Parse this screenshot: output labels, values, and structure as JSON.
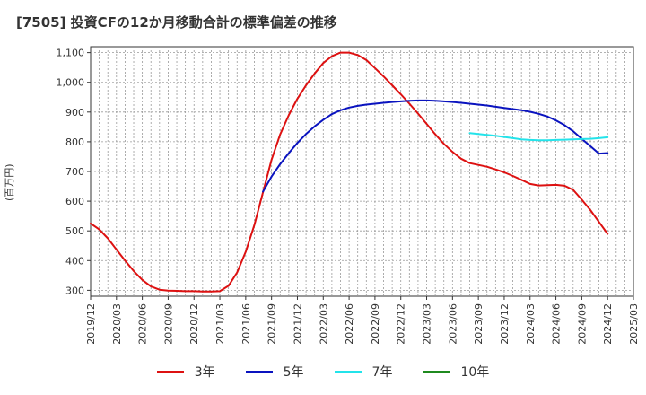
{
  "title": "[7505]  投資CFの12か月移動合計の標準偏差の推移",
  "colors": {
    "s3": "#dd1111",
    "s5": "#0a13bf",
    "s7": "#23e3ea",
    "s10": "#1f8a1f",
    "grid": "#999999",
    "axis": "#333333"
  },
  "chart_data": {
    "type": "line",
    "title": "[7505]  投資CFの12か月移動合計の標準偏差の推移",
    "ylabel": "(百万円)",
    "xlabel": "",
    "ylim": [
      280,
      1120
    ],
    "yticks": [
      300,
      400,
      500,
      600,
      700,
      800,
      900,
      1000,
      1100
    ],
    "ytick_labels": [
      "300",
      "400",
      "500",
      "600",
      "700",
      "800",
      "900",
      "1,000",
      "1,100"
    ],
    "xticks": [
      "2019/12",
      "2020/03",
      "2020/06",
      "2020/09",
      "2020/12",
      "2021/03",
      "2021/06",
      "2021/09",
      "2021/12",
      "2022/03",
      "2022/06",
      "2022/09",
      "2022/12",
      "2023/03",
      "2023/06",
      "2023/09",
      "2023/12",
      "2024/03",
      "2024/06",
      "2024/09",
      "2024/12",
      "2025/03"
    ],
    "grid": true,
    "legend_position": "bottom",
    "series": [
      {
        "name": "3年",
        "color_key": "s3",
        "x": [
          "2019/12",
          "2020/01",
          "2020/02",
          "2020/03",
          "2020/04",
          "2020/05",
          "2020/06",
          "2020/07",
          "2020/08",
          "2020/09",
          "2020/10",
          "2020/11",
          "2020/12",
          "2021/01",
          "2021/02",
          "2021/03",
          "2021/04",
          "2021/05",
          "2021/06",
          "2021/07",
          "2021/08",
          "2021/09",
          "2021/10",
          "2021/11",
          "2021/12",
          "2022/01",
          "2022/02",
          "2022/03",
          "2022/04",
          "2022/05",
          "2022/06",
          "2022/07",
          "2022/08",
          "2022/09",
          "2022/10",
          "2022/11",
          "2022/12",
          "2023/01",
          "2023/02",
          "2023/03",
          "2023/04",
          "2023/05",
          "2023/06",
          "2023/07",
          "2023/08",
          "2023/09",
          "2023/10",
          "2023/11",
          "2023/12",
          "2024/01",
          "2024/02",
          "2024/03",
          "2024/04",
          "2024/05",
          "2024/06",
          "2024/07",
          "2024/08",
          "2024/09",
          "2024/10",
          "2024/11",
          "2024/12"
        ],
        "values": [
          525,
          505,
          475,
          437,
          400,
          365,
          335,
          313,
          302,
          299,
          298,
          297,
          297,
          296,
          296,
          297,
          315,
          360,
          430,
          520,
          630,
          740,
          825,
          890,
          945,
          990,
          1030,
          1065,
          1088,
          1100,
          1100,
          1092,
          1075,
          1048,
          1020,
          990,
          960,
          928,
          895,
          860,
          825,
          793,
          766,
          743,
          728,
          722,
          716,
          707,
          697,
          685,
          672,
          658,
          653,
          654,
          655,
          652,
          638,
          605,
          570,
          530,
          490
        ]
      },
      {
        "name": "5年",
        "color_key": "s5",
        "x": [
          "2021/08",
          "2021/09",
          "2021/10",
          "2021/11",
          "2021/12",
          "2022/01",
          "2022/02",
          "2022/03",
          "2022/04",
          "2022/05",
          "2022/06",
          "2022/07",
          "2022/08",
          "2022/09",
          "2022/10",
          "2022/11",
          "2022/12",
          "2023/01",
          "2023/02",
          "2023/03",
          "2023/04",
          "2023/05",
          "2023/06",
          "2023/07",
          "2023/08",
          "2023/09",
          "2023/10",
          "2023/11",
          "2023/12",
          "2024/01",
          "2024/02",
          "2024/03",
          "2024/04",
          "2024/05",
          "2024/06",
          "2024/07",
          "2024/08",
          "2024/09",
          "2024/10",
          "2024/11",
          "2024/12"
        ],
        "values": [
          632,
          683,
          725,
          762,
          796,
          826,
          852,
          874,
          893,
          906,
          915,
          921,
          925,
          928,
          931,
          934,
          936,
          938,
          939,
          939,
          938,
          936,
          934,
          931,
          928,
          925,
          922,
          918,
          914,
          910,
          906,
          901,
          894,
          885,
          872,
          856,
          835,
          810,
          785,
          760,
          762
        ]
      },
      {
        "name": "7年",
        "color_key": "s7",
        "x": [
          "2023/08",
          "2023/09",
          "2023/10",
          "2023/11",
          "2023/12",
          "2024/01",
          "2024/02",
          "2024/03",
          "2024/04",
          "2024/05",
          "2024/06",
          "2024/07",
          "2024/08",
          "2024/09",
          "2024/10",
          "2024/11",
          "2024/12"
        ],
        "values": [
          829,
          826,
          823,
          820,
          816,
          812,
          808,
          806,
          805,
          805,
          806,
          807,
          808,
          809,
          810,
          812,
          815
        ]
      },
      {
        "name": "10年",
        "color_key": "s10",
        "x": [],
        "values": []
      }
    ]
  }
}
